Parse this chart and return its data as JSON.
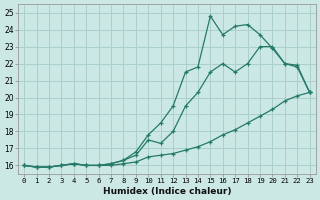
{
  "xlabel": "Humidex (Indice chaleur)",
  "ylabel": "",
  "xlim": [
    -0.5,
    23.5
  ],
  "ylim": [
    15.5,
    25.5
  ],
  "xticks": [
    0,
    1,
    2,
    3,
    4,
    5,
    6,
    7,
    8,
    9,
    10,
    11,
    12,
    13,
    14,
    15,
    16,
    17,
    18,
    19,
    20,
    21,
    22,
    23
  ],
  "yticks": [
    16,
    17,
    18,
    19,
    20,
    21,
    22,
    23,
    24,
    25
  ],
  "bg_color": "#cce8e4",
  "grid_color": "#aad0cb",
  "line_color": "#257a6a",
  "line1_x": [
    0,
    1,
    2,
    3,
    4,
    5,
    6,
    7,
    8,
    9,
    10,
    11,
    12,
    13,
    14,
    15,
    16,
    17,
    18,
    19,
    20,
    21,
    22,
    23
  ],
  "line1_y": [
    16.0,
    15.9,
    15.9,
    16.0,
    16.1,
    16.0,
    16.0,
    16.0,
    16.1,
    16.2,
    16.5,
    16.6,
    16.7,
    16.9,
    17.1,
    17.4,
    17.8,
    18.1,
    18.5,
    18.9,
    19.3,
    19.8,
    20.1,
    20.3
  ],
  "line2_x": [
    0,
    1,
    2,
    3,
    4,
    5,
    6,
    7,
    8,
    9,
    10,
    11,
    12,
    13,
    14,
    15,
    16,
    17,
    18,
    19,
    20,
    21,
    22,
    23
  ],
  "line2_y": [
    16.0,
    15.9,
    15.9,
    16.0,
    16.1,
    16.0,
    16.0,
    16.1,
    16.3,
    16.6,
    17.5,
    17.3,
    18.0,
    19.5,
    20.3,
    21.5,
    22.0,
    21.5,
    22.0,
    23.0,
    23.0,
    22.0,
    21.8,
    20.3
  ],
  "line3_x": [
    0,
    1,
    2,
    3,
    4,
    5,
    6,
    7,
    8,
    9,
    10,
    11,
    12,
    13,
    14,
    15,
    16,
    17,
    18,
    19,
    20,
    21,
    22,
    23
  ],
  "line3_y": [
    16.0,
    15.9,
    15.9,
    16.0,
    16.1,
    16.0,
    16.0,
    16.1,
    16.3,
    16.8,
    17.8,
    18.5,
    19.5,
    21.5,
    21.8,
    24.8,
    23.7,
    24.2,
    24.3,
    23.7,
    22.9,
    22.0,
    21.9,
    20.3
  ]
}
